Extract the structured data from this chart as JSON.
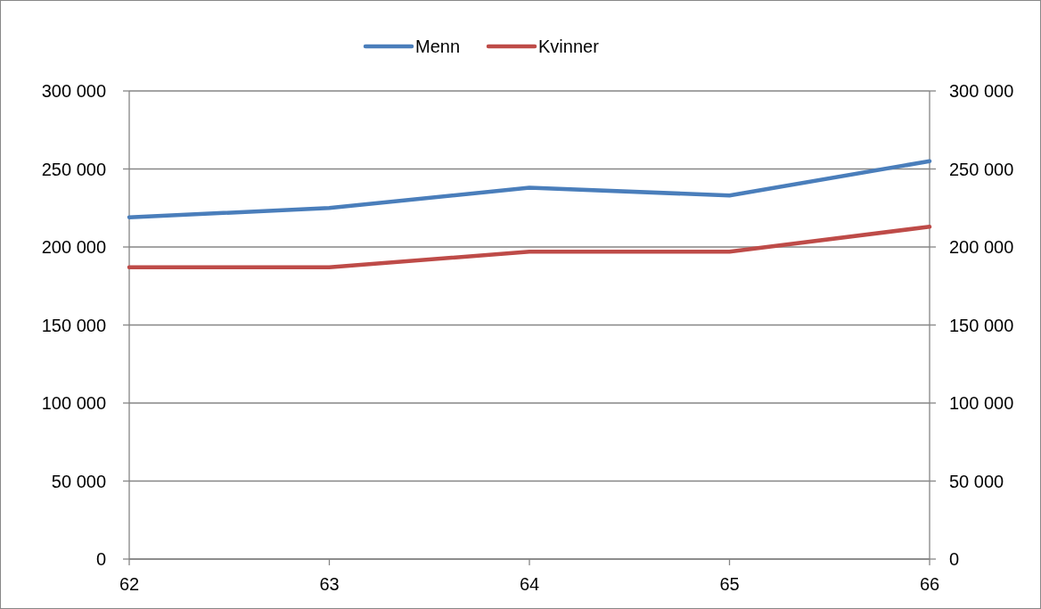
{
  "chart_data": {
    "type": "line",
    "x": [
      62,
      63,
      64,
      65,
      66
    ],
    "series": [
      {
        "name": "Menn",
        "color": "#4a7ebb",
        "values": [
          219000,
          225000,
          238000,
          233000,
          255000
        ]
      },
      {
        "name": "Kvinner",
        "color": "#be4b48",
        "values": [
          187000,
          187000,
          197000,
          197000,
          213000
        ]
      }
    ],
    "xlim": [
      62,
      66
    ],
    "xticks": [
      62,
      63,
      64,
      65,
      66
    ],
    "ylim": [
      0,
      300000
    ],
    "yticks": [
      0,
      {
        "value": 50000,
        "label": "50 000"
      },
      {
        "value": 100000,
        "label": "100 000"
      },
      {
        "value": 150000,
        "label": "150 000"
      },
      {
        "value": 200000,
        "label": "200 000"
      },
      {
        "value": 250000,
        "label": "250 000"
      },
      {
        "value": 300000,
        "label": "300 000"
      }
    ],
    "y2lim": [
      0,
      300000
    ],
    "y2ticks": [
      0,
      {
        "value": 50000,
        "label": "50 000"
      },
      {
        "value": 100000,
        "label": "100 000"
      },
      {
        "value": 150000,
        "label": "150 000"
      },
      {
        "value": 200000,
        "label": "200 000"
      },
      {
        "value": 250000,
        "label": "250 000"
      },
      {
        "value": 300000,
        "label": "300 000"
      }
    ],
    "grid": "y",
    "legend": "top",
    "marker": "none",
    "line_style": "solid"
  }
}
